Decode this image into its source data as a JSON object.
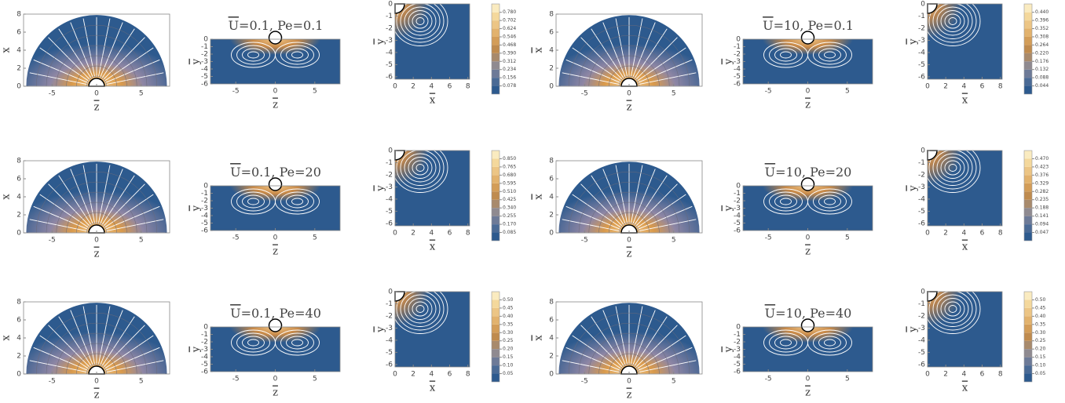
{
  "axes": {
    "half": {
      "xlim": [
        -8.2,
        8.2
      ],
      "ylim": [
        0,
        8
      ],
      "xticks": [
        -5,
        0,
        5
      ],
      "yticks": [
        0,
        2,
        4,
        6,
        8
      ],
      "xlabel": "z",
      "ylabel": "x"
    },
    "rect": {
      "xlim": [
        -8.2,
        8.2
      ],
      "ylim": [
        -6,
        0
      ],
      "xticks": [
        -5,
        0,
        5
      ],
      "yticks": [
        0,
        -1,
        -2,
        -3,
        -4,
        -5,
        -6
      ],
      "xlabel": "z",
      "ylabel": "y"
    },
    "quarter": {
      "xlim": [
        0,
        8.2
      ],
      "ylim": [
        -6.2,
        0
      ],
      "xticks": [
        0,
        2,
        4,
        6,
        8
      ],
      "yticks": [
        0,
        -1,
        -2,
        -3,
        -4,
        -5,
        -6
      ],
      "xlabel": "x",
      "ylabel": "y"
    }
  },
  "groups": [
    {
      "title_symbol": "U",
      "title_rest": "=0.1, Pe=0.1",
      "colorbar": {
        "clim": [
          0,
          0.86
        ],
        "ticks": [
          0.078,
          0.156,
          0.234,
          0.312,
          {
            "value": 0.39,
            "label": "0.390"
          },
          0.468,
          0.546,
          0.624,
          0.702,
          {
            "value": 0.78,
            "label": "0.780"
          }
        ]
      }
    },
    {
      "title_symbol": "U",
      "title_rest": "=10, Pe=0.1",
      "colorbar": {
        "clim": [
          0,
          0.485
        ],
        "ticks": [
          0.044,
          0.088,
          0.132,
          0.176,
          {
            "value": 0.22,
            "label": "0.220"
          },
          0.264,
          0.308,
          0.352,
          0.396,
          {
            "value": 0.44,
            "label": "0.440"
          }
        ]
      }
    },
    {
      "title_symbol": "U",
      "title_rest": "=0.1, Pe=20",
      "colorbar": {
        "clim": [
          0,
          0.935
        ],
        "ticks": [
          0.085,
          {
            "value": 0.17,
            "label": "0.170"
          },
          0.255,
          {
            "value": 0.34,
            "label": "0.340"
          },
          0.425,
          {
            "value": 0.51,
            "label": "0.510"
          },
          0.595,
          {
            "value": 0.68,
            "label": "0.680"
          },
          0.765,
          {
            "value": 0.85,
            "label": "0.850"
          }
        ]
      }
    },
    {
      "title_symbol": "U",
      "title_rest": "=10, Pe=20",
      "colorbar": {
        "clim": [
          0,
          0.517
        ],
        "ticks": [
          0.047,
          0.094,
          0.141,
          0.188,
          0.235,
          0.282,
          0.329,
          0.376,
          0.423,
          {
            "value": 0.47,
            "label": "0.470"
          }
        ]
      }
    },
    {
      "title_symbol": "U",
      "title_rest": "=0.1, Pe=40",
      "colorbar": {
        "clim": [
          0,
          0.55
        ],
        "ticks": [
          0.05,
          {
            "value": 0.1,
            "label": "0.10"
          },
          0.15,
          {
            "value": 0.2,
            "label": "0.20"
          },
          0.25,
          {
            "value": 0.3,
            "label": "0.30"
          },
          0.35,
          {
            "value": 0.4,
            "label": "0.40"
          },
          0.45,
          {
            "value": 0.5,
            "label": "0.50"
          }
        ]
      }
    },
    {
      "title_symbol": "U",
      "title_rest": "=10, Pe=40",
      "colorbar": {
        "clim": [
          0,
          0.55
        ],
        "ticks": [
          0.05,
          {
            "value": 0.1,
            "label": "0.10"
          },
          0.15,
          {
            "value": 0.2,
            "label": "0.20"
          },
          0.25,
          {
            "value": 0.3,
            "label": "0.30"
          },
          0.35,
          {
            "value": 0.4,
            "label": "0.40"
          },
          0.45,
          {
            "value": 0.5,
            "label": "0.50"
          }
        ]
      }
    }
  ]
}
